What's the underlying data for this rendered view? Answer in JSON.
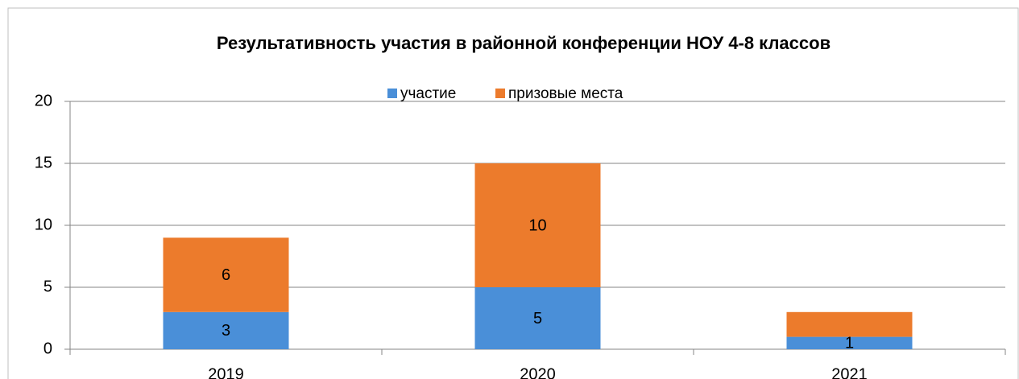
{
  "chart_data": {
    "type": "stacked_bar",
    "title": "Результативность участия в районной конференции НОУ  4-8 классов",
    "categories": [
      "2019",
      "2020",
      "2021"
    ],
    "series": [
      {
        "name": "участие",
        "color": "#4a8fd8",
        "values": [
          3,
          5,
          1
        ]
      },
      {
        "name": "призовые места",
        "color": "#ec7b2c",
        "values": [
          6,
          10,
          2
        ],
        "value_labels": [
          "6",
          "10",
          null
        ]
      }
    ],
    "ylim": [
      0,
      20
    ],
    "yticks": [
      0,
      5,
      10,
      15,
      20
    ],
    "grid": true,
    "legend": "top"
  }
}
